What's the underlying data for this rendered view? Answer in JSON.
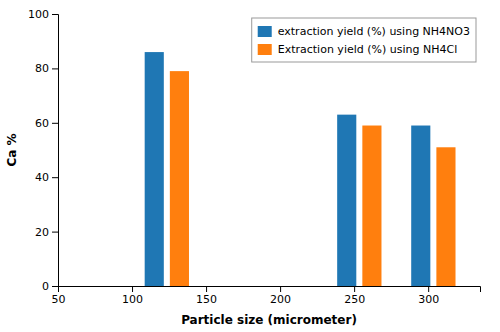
{
  "chart_data": {
    "type": "bar",
    "xlabel": "Particle size (micrometer)",
    "ylabel": "Ca %",
    "series": [
      {
        "name": "extraction yield (%) using NH4NO3",
        "x": [
          115,
          245,
          295
        ],
        "values": [
          86,
          63,
          59
        ]
      },
      {
        "name": "Extraction yield (%) using NH4Cl",
        "x": [
          132,
          262,
          312
        ],
        "values": [
          79,
          59,
          51
        ]
      }
    ],
    "xlim": [
      50,
      335
    ],
    "ylim": [
      0,
      100
    ],
    "xticks": [
      50,
      100,
      150,
      200,
      250,
      300
    ],
    "yticks": [
      0,
      20,
      40,
      60,
      80,
      100
    ],
    "legend": "upper right",
    "grid": false
  }
}
